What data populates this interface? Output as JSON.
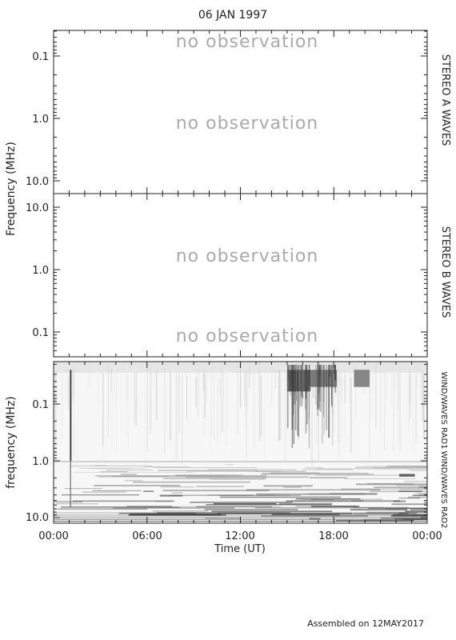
{
  "date_title": "06 JAN 1997",
  "footer": "Assembled on 12MAY2017",
  "colors": {
    "axis": "#222222",
    "no_observation_text": "#aaaaaa",
    "spectrogram_background": "#f7f7f7",
    "burst": "#222222"
  },
  "chart_data": [
    {
      "type": "heatmap",
      "panel": "top",
      "side_label": "STEREO A WAVES",
      "ylabel": "Frequency (MHz)",
      "yscale": "log",
      "yticks": [
        "0.1",
        "1.0",
        "10.0"
      ],
      "status_text": [
        "no observation",
        "no observation"
      ],
      "data_available": false
    },
    {
      "type": "heatmap",
      "panel": "middle",
      "side_label": "STEREO B WAVES",
      "ylabel": "Frequency (MHz)",
      "yscale": "log",
      "yticks": [
        "10.0",
        "1.0",
        "0.1"
      ],
      "status_text": [
        "no observation",
        "no observation"
      ],
      "data_available": false
    },
    {
      "type": "heatmap",
      "panel": "bottom",
      "side_labels": [
        "WIND/WAVES RAD1",
        "WIND/WAVES RAD2"
      ],
      "ylabel": "frequency (MHz)",
      "xlabel": "Time (UT)",
      "yscale": "log",
      "yticks": [
        "0.1",
        "1.0",
        "10.0"
      ],
      "xticks": [
        "00:00",
        "06:00",
        "12:00",
        "18:00",
        "00:00"
      ],
      "data_available": true,
      "burst_features": [
        {
          "start_hour": 1.05,
          "end_hour": 1.15,
          "freq_low_mhz": 0.025,
          "freq_high_mhz": 1.0,
          "intensity": 0.9
        },
        {
          "start_hour": 15.0,
          "end_hour": 16.5,
          "freq_low_mhz": 0.025,
          "freq_high_mhz": 0.06,
          "intensity": 0.75
        },
        {
          "start_hour": 16.5,
          "end_hour": 18.2,
          "freq_low_mhz": 0.025,
          "freq_high_mhz": 0.05,
          "intensity": 0.6
        },
        {
          "start_hour": 19.3,
          "end_hour": 20.3,
          "freq_low_mhz": 0.025,
          "freq_high_mhz": 0.05,
          "intensity": 0.55
        },
        {
          "start_hour": 22.2,
          "end_hour": 23.2,
          "freq_low_mhz": 1.7,
          "freq_high_mhz": 1.9,
          "intensity": 0.7
        }
      ]
    }
  ]
}
